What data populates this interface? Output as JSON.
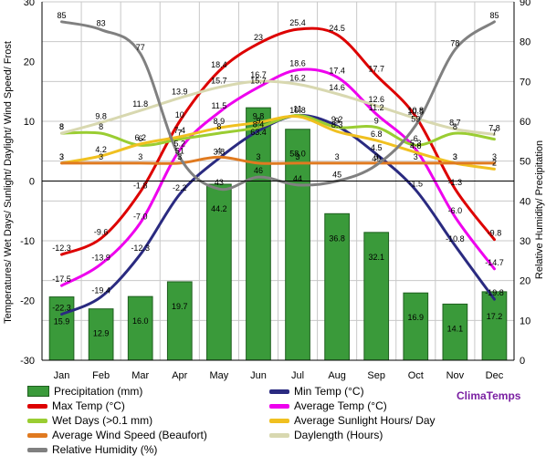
{
  "chart_data": {
    "type": "bar+line",
    "categories": [
      "Jan",
      "Feb",
      "Mar",
      "Apr",
      "May",
      "Jun",
      "Jul",
      "Aug",
      "Sep",
      "Oct",
      "Nov",
      "Dec"
    ],
    "left_axis": {
      "label": "Temperatures/ Wet Days/ Sunlight/ Daylight/ Wind Speed/ Frost",
      "ylim": [
        -30,
        30
      ],
      "ticks": [
        "-30",
        "-20",
        "-10",
        "0",
        "10",
        "20",
        "30"
      ]
    },
    "right_axis": {
      "label": "Relative Humidity/ Precipitation",
      "ylim": [
        0,
        90
      ],
      "ticks": [
        "0",
        "10",
        "20",
        "30",
        "40",
        "50",
        "60",
        "70",
        "80",
        "90"
      ]
    },
    "grid": true,
    "series": [
      {
        "name": "Precipitation (mm)",
        "axis": "right",
        "kind": "bar",
        "color": "#3a9a3a",
        "values": [
          15.9,
          12.9,
          16.0,
          19.7,
          44.2,
          63.4,
          58.0,
          36.8,
          32.1,
          16.9,
          14.1,
          17.2
        ],
        "labels": [
          "15.9",
          "12.9",
          "16.0",
          "19.7",
          "44.2",
          "63.4",
          "58.0",
          "36.8",
          "32.1",
          "16.9",
          "14.1",
          "17.2"
        ]
      },
      {
        "name": "Min Temp (°C)",
        "axis": "left",
        "kind": "line",
        "color": "#2a2a80",
        "values": [
          -22.3,
          -19.4,
          -12.3,
          -2.2,
          3.8,
          8.4,
          11.0,
          9.2,
          4.5,
          -1.5,
          -10.8,
          -19.8
        ],
        "labels": [
          "-22.3",
          "-19.4",
          "-12.3",
          "-2.2",
          "3.8",
          "8.4",
          "11",
          "9.2",
          "4.5",
          "-1.5",
          "-10.8",
          "-19.8"
        ]
      },
      {
        "name": "Max Temp (°C)",
        "axis": "left",
        "kind": "line",
        "color": "#dd0000",
        "values": [
          -12.3,
          -9.6,
          -1.8,
          10.0,
          18.4,
          23.0,
          25.4,
          24.5,
          17.7,
          10.8,
          -1.3,
          -9.8
        ],
        "labels": [
          "-12.3",
          "-9.6",
          "-1.8",
          "10",
          "18.4",
          "23",
          "25.4",
          "24.5",
          "17.7",
          "10.8",
          "-1.3",
          "-9.8"
        ]
      },
      {
        "name": "Average Temp (°C)",
        "axis": "left",
        "kind": "line",
        "color": "#ee00ee",
        "values": [
          -17.5,
          -13.9,
          -7.0,
          5.2,
          11.5,
          15.7,
          18.6,
          17.4,
          11.2,
          5.3,
          -6.0,
          -14.7
        ],
        "labels": [
          "-17.5",
          "-13.9",
          "-7.0",
          "5.2",
          "11.5",
          "15.7",
          "18.6",
          "17.4",
          "11.2",
          "5.3",
          "-6.0",
          "-14.7"
        ]
      },
      {
        "name": "Wet Days (>0.1 mm)",
        "axis": "left",
        "kind": "line",
        "color": "#9acd32",
        "values": [
          8.0,
          8.0,
          6.0,
          7.0,
          8.0,
          9.0,
          11.0,
          9.0,
          9.0,
          6.0,
          8.0,
          7.0
        ],
        "labels": [
          "8",
          "8",
          "6",
          "7",
          "8",
          "9",
          "11",
          "9",
          "9",
          "6",
          "8",
          "7"
        ]
      },
      {
        "name": "Average Sunlight Hours/ Day",
        "axis": "left",
        "kind": "line",
        "color": "#f0c020",
        "values": [
          3.0,
          4.2,
          6.2,
          7.4,
          8.9,
          9.8,
          10.8,
          8.3,
          6.8,
          4.8,
          3.0,
          2.0
        ],
        "labels": [
          "3",
          "4.2",
          "6.2",
          "7.4",
          "8.9",
          "9.8",
          "10.8",
          "8.3",
          "6.8",
          "4.8",
          "3",
          "2"
        ]
      },
      {
        "name": "Average Wind Speed (Beaufort)",
        "axis": "left",
        "kind": "line",
        "color": "#e07a20",
        "values": [
          3.0,
          3.0,
          3.0,
          3.0,
          4.0,
          3.0,
          3.0,
          3.0,
          3.0,
          3.0,
          3.0,
          3.0
        ],
        "labels": [
          "3",
          "3",
          "3",
          "3",
          "4",
          "3",
          "3",
          "3",
          "3",
          "3",
          "3",
          "3"
        ]
      },
      {
        "name": "Daylength (Hours)",
        "axis": "left",
        "kind": "line",
        "color": "#d8d8b0",
        "values": [
          8.0,
          9.8,
          11.8,
          13.9,
          15.7,
          16.7,
          16.2,
          14.6,
          12.6,
          10.5,
          8.7,
          7.8
        ],
        "labels": [
          "8",
          "9.8",
          "11.8",
          "13.9",
          "15.7",
          "16.7",
          "16.2",
          "14.6",
          "12.6",
          "10.5",
          "8.7",
          "7.8"
        ]
      },
      {
        "name": "Relative Humidity (%)",
        "axis": "right",
        "kind": "line",
        "color": "#808080",
        "values": [
          85,
          83,
          77,
          51,
          43,
          46,
          44,
          45,
          49,
          59,
          78,
          85
        ],
        "labels": [
          "85",
          "83",
          "77",
          "51",
          "43",
          "46",
          "44",
          "45",
          "49",
          "59",
          "78",
          "85"
        ]
      }
    ]
  },
  "brand": "ClimaTemps"
}
